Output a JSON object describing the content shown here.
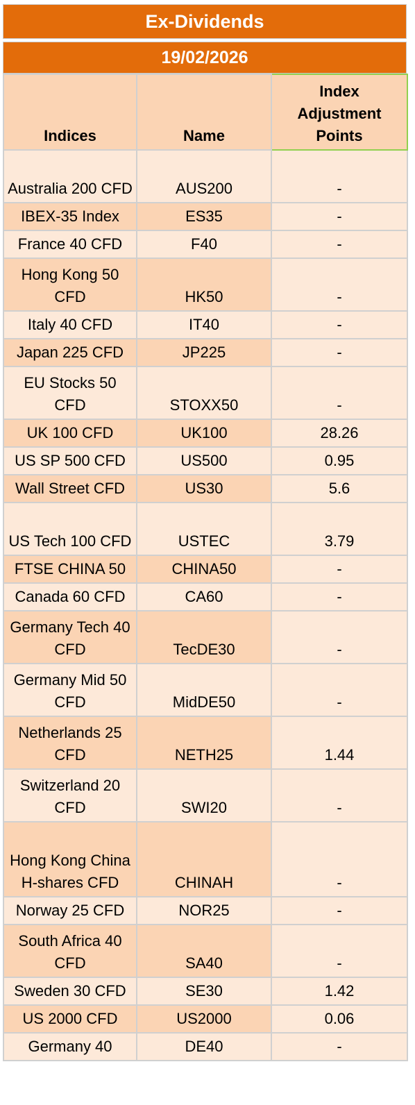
{
  "title": "Ex-Dividends",
  "date": "19/02/2026",
  "headers": {
    "indices": "Indices",
    "name": "Name",
    "points": "Index\nAdjustment\nPoints"
  },
  "rows": [
    {
      "index": "Australia 200 CFD",
      "name": "AUS200",
      "points": "-"
    },
    {
      "index": "IBEX-35 Index",
      "name": "ES35",
      "points": "-"
    },
    {
      "index": "France 40 CFD",
      "name": "F40",
      "points": "-"
    },
    {
      "index": "Hong Kong 50 CFD",
      "name": "HK50",
      "points": "-"
    },
    {
      "index": "Italy 40 CFD",
      "name": "IT40",
      "points": "-"
    },
    {
      "index": "Japan 225 CFD",
      "name": "JP225",
      "points": "-"
    },
    {
      "index": "EU Stocks 50 CFD",
      "name": "STOXX50",
      "points": "-"
    },
    {
      "index": "UK 100 CFD",
      "name": "UK100",
      "points": "28.26"
    },
    {
      "index": "US SP 500 CFD",
      "name": "US500",
      "points": "0.95"
    },
    {
      "index": "Wall Street CFD",
      "name": "US30",
      "points": "5.6"
    },
    {
      "index": "US Tech 100 CFD",
      "name": "USTEC",
      "points": "3.79"
    },
    {
      "index": "FTSE CHINA 50",
      "name": "CHINA50",
      "points": "-"
    },
    {
      "index": "Canada 60 CFD",
      "name": "CA60",
      "points": "-"
    },
    {
      "index": "Germany Tech 40 CFD",
      "name": "TecDE30",
      "points": "-"
    },
    {
      "index": "Germany Mid 50 CFD",
      "name": "MidDE50",
      "points": "-"
    },
    {
      "index": "Netherlands 25 CFD",
      "name": "NETH25",
      "points": "1.44"
    },
    {
      "index": "Switzerland 20 CFD",
      "name": "SWI20",
      "points": "-"
    },
    {
      "index": "Hong Kong China H-shares CFD",
      "name": "CHINAH",
      "points": "-"
    },
    {
      "index": "Norway 25 CFD",
      "name": "NOR25",
      "points": "-"
    },
    {
      "index": "South Africa 40 CFD",
      "name": "SA40",
      "points": "-"
    },
    {
      "index": "Sweden 30 CFD",
      "name": "SE30",
      "points": "1.42"
    },
    {
      "index": "US 2000 CFD",
      "name": "US2000",
      "points": "0.06"
    },
    {
      "index": "Germany 40",
      "name": "DE40",
      "points": "-"
    }
  ]
}
